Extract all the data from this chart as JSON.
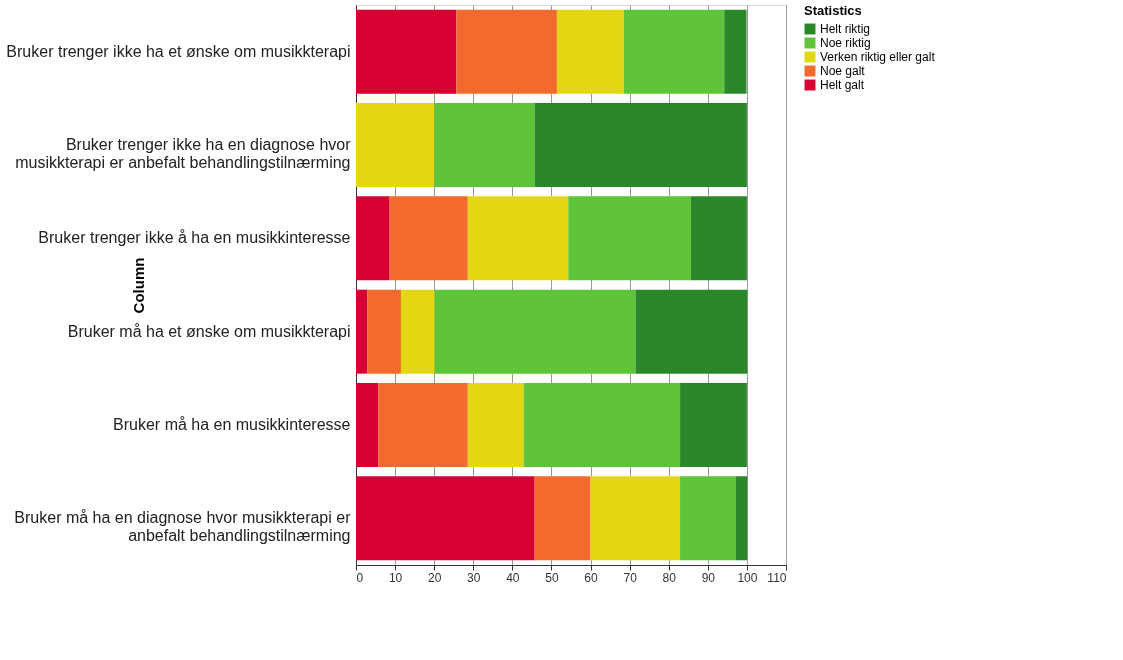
{
  "chart_data": {
    "type": "bar",
    "orientation": "horizontal",
    "stacked": true,
    "categories": [
      "Bruker trenger ikke ha et ønske om musikkterapi",
      "Bruker trenger ikke ha en diagnose hvor\nmusikkterapi er anbefalt behandlingstilnærming",
      "Bruker trenger ikke å ha en musikkinteresse",
      "Bruker må ha et ønske om musikkterapi",
      "Bruker må ha en musikkinteresse",
      "Bruker må ha en diagnose hvor musikkterapi er\nanbefalt behandlingstilnærming"
    ],
    "series": [
      {
        "name": "Helt galt",
        "color": "#d70032",
        "values": [
          25.7,
          0,
          8.6,
          2.9,
          5.7,
          45.7
        ]
      },
      {
        "name": "Noe galt",
        "color": "#f26a2e",
        "values": [
          25.7,
          0,
          20.0,
          8.6,
          22.9,
          14.3
        ]
      },
      {
        "name": "Verken riktig eller galt",
        "color": "#e2d712",
        "values": [
          17.1,
          20.0,
          25.7,
          8.6,
          14.3,
          22.9
        ]
      },
      {
        "name": "Noe riktig",
        "color": "#5fc43a",
        "values": [
          25.7,
          25.7,
          31.4,
          51.4,
          40.0,
          14.3
        ]
      },
      {
        "name": "Helt riktig",
        "color": "#2a872a",
        "values": [
          5.7,
          54.3,
          14.3,
          28.6,
          17.1,
          2.9
        ]
      }
    ],
    "xlim": [
      0,
      110
    ],
    "xticks": [
      0,
      10,
      20,
      30,
      40,
      50,
      60,
      70,
      80,
      90,
      100,
      110
    ],
    "ylabel": "Column",
    "legend_title": "Statistics",
    "legend": "top right",
    "grid": "x"
  }
}
